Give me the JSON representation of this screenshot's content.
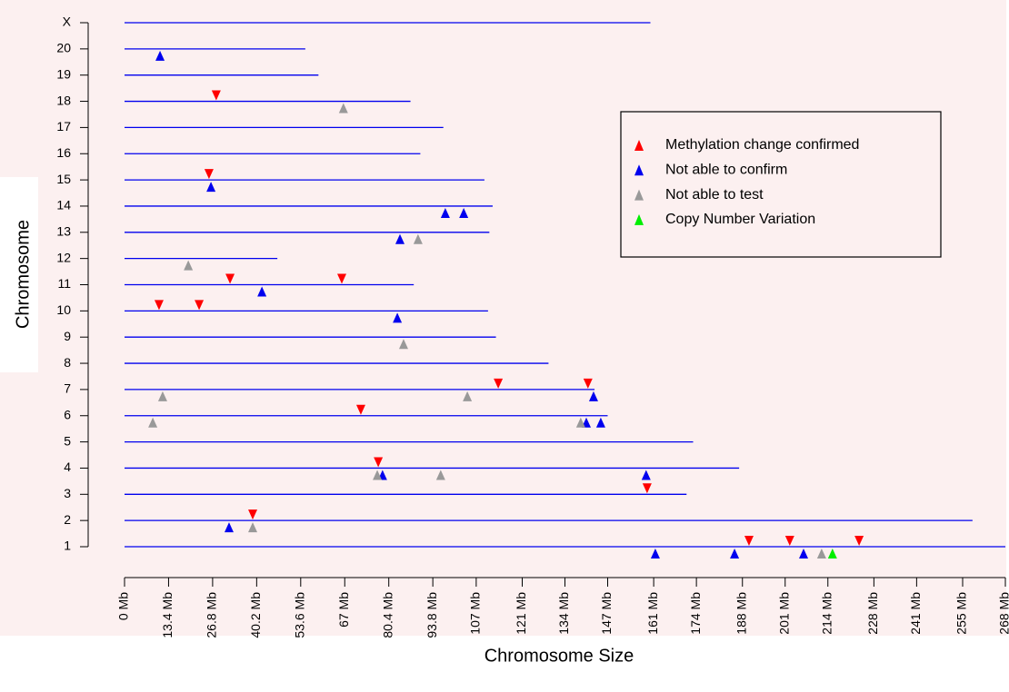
{
  "chart_data": {
    "type": "chromosome-map",
    "xlabel": "Chromosome Size",
    "ylabel": "Chromosome",
    "categories": [
      "1",
      "2",
      "3",
      "4",
      "5",
      "6",
      "7",
      "8",
      "9",
      "10",
      "11",
      "12",
      "13",
      "14",
      "15",
      "16",
      "17",
      "18",
      "19",
      "20",
      "X"
    ],
    "lengths": [
      268,
      258,
      171,
      187,
      173,
      147,
      143,
      129,
      113,
      110.6,
      88,
      46.5,
      111,
      112,
      109.5,
      90,
      97,
      87,
      59,
      55,
      160
    ],
    "line_color": "#0000ee",
    "xlim": [
      0,
      268
    ],
    "xticks": [
      {
        "value": 0,
        "label": "0 Mb"
      },
      {
        "value": 13.4,
        "label": "13.4 Mb"
      },
      {
        "value": 26.8,
        "label": "26.8 Mb"
      },
      {
        "value": 40.2,
        "label": "40.2 Mb"
      },
      {
        "value": 53.6,
        "label": "53.6 Mb"
      },
      {
        "value": 67,
        "label": "67 Mb"
      },
      {
        "value": 80.4,
        "label": "80.4 Mb"
      },
      {
        "value": 93.8,
        "label": "93.8 Mb"
      },
      {
        "value": 107,
        "label": "107 Mb"
      },
      {
        "value": 121,
        "label": "121 Mb"
      },
      {
        "value": 134,
        "label": "134 Mb"
      },
      {
        "value": 147,
        "label": "147 Mb"
      },
      {
        "value": 161,
        "label": "161 Mb"
      },
      {
        "value": 174,
        "label": "174 Mb"
      },
      {
        "value": 188,
        "label": "188 Mb"
      },
      {
        "value": 201,
        "label": "201 Mb"
      },
      {
        "value": 214,
        "label": "214 Mb"
      },
      {
        "value": 228,
        "label": "228 Mb"
      },
      {
        "value": 241,
        "label": "241 Mb"
      },
      {
        "value": 255,
        "label": "255 Mb"
      },
      {
        "value": 268,
        "label": "268 Mb"
      }
    ],
    "series": [
      {
        "name": "Methylation change confirmed",
        "color": "#ff0000",
        "marker": "triangle-down",
        "x": [
          27.9,
          25.7,
          32.1,
          66.1,
          10.5,
          22.7,
          113.7,
          141.0,
          71.9,
          77.2,
          159.0,
          39.0,
          190.0,
          202.4,
          223.5
        ],
        "y": [
          "18",
          "15",
          "11",
          "11",
          "10",
          "10",
          "7",
          "7",
          "6",
          "4",
          "3",
          "2",
          "1",
          "1",
          "1"
        ]
      },
      {
        "name": "Not able  to confirm",
        "color": "#0000ee",
        "marker": "triangle-up",
        "x": [
          10.8,
          26.3,
          97.6,
          103.2,
          83.8,
          41.8,
          83.0,
          142.7,
          140.5,
          144.9,
          78.5,
          158.7,
          31.8,
          161.5,
          185.6,
          206.6
        ],
        "y": [
          "20",
          "15",
          "14",
          "14",
          "13",
          "11",
          "10",
          "7",
          "6",
          "6",
          "4",
          "4",
          "2",
          "1",
          "1",
          "1"
        ]
      },
      {
        "name": "Not able to test",
        "color": "#999999",
        "marker": "triangle-up",
        "x": [
          66.6,
          89.3,
          19.4,
          84.9,
          11.6,
          104.3,
          8.6,
          138.8,
          76.9,
          96.2,
          39.0,
          212.1
        ],
        "y": [
          "18",
          "13",
          "12",
          "9",
          "7",
          "7",
          "6",
          "6",
          "4",
          "4",
          "2",
          "1"
        ]
      },
      {
        "name": "Copy Number Variation",
        "color": "#00ee00",
        "marker": "triangle-up",
        "x": [
          215.4
        ],
        "y": [
          "1"
        ]
      }
    ]
  }
}
